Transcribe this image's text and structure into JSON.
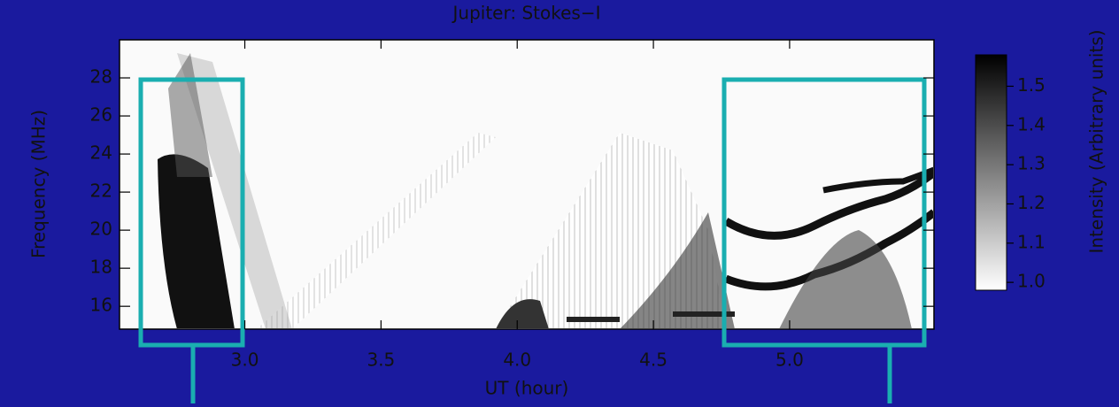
{
  "chart_data": {
    "type": "spectrogram",
    "title": "Jupiter: Stokes−I",
    "x_label": "UT (hour)",
    "y_label": "Frequency (MHz)",
    "xlim": [
      2.54,
      5.53
    ],
    "ylim": [
      14.8,
      30
    ],
    "xticks": [
      {
        "value": 3,
        "label": "3.0"
      },
      3.5,
      {
        "value": 4,
        "label": "4.0"
      },
      4.5,
      {
        "value": 5,
        "label": "5.0"
      }
    ],
    "yticks": [
      16,
      18,
      20,
      22,
      24,
      26,
      28
    ],
    "colorbar": {
      "label": "Intensity (Arbitrary units)",
      "lim": [
        0.98,
        1.58
      ],
      "ticks": [
        {
          "value": 1,
          "label": "1.0"
        },
        1.1,
        1.2,
        1.3,
        1.4,
        1.5
      ],
      "colors": [
        "#ffffff",
        "#000000"
      ]
    }
  }
}
